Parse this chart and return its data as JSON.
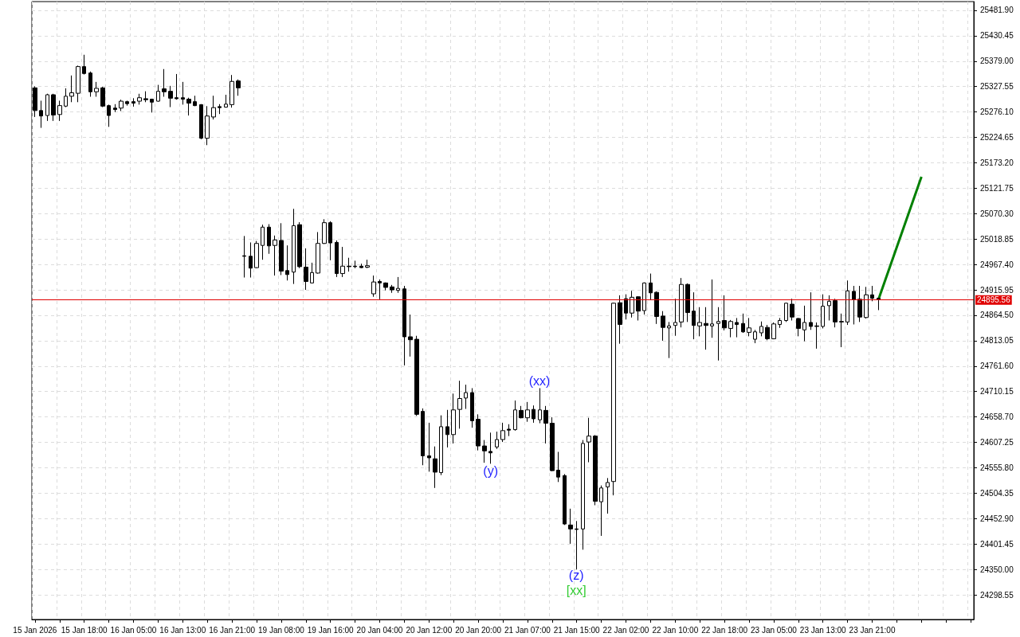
{
  "chart_data": {
    "type": "candlestick",
    "categories": [
      "15 Jan 2026",
      null,
      null,
      null,
      null,
      null,
      null,
      null,
      "15 Jan 18:00",
      null,
      null,
      null,
      null,
      null,
      null,
      null,
      "16 Jan 05:00",
      null,
      null,
      null,
      null,
      null,
      null,
      null,
      "16 Jan 13:00",
      null,
      null,
      null,
      null,
      null,
      null,
      null,
      "16 Jan 21:00",
      null,
      null,
      null,
      null,
      null,
      null,
      null,
      "19 Jan 08:00",
      null,
      null,
      null,
      null,
      null,
      null,
      null,
      "19 Jan 16:00",
      null,
      null,
      null,
      null,
      null,
      null,
      null,
      "20 Jan 04:00",
      null,
      null,
      null,
      null,
      null,
      null,
      null,
      "20 Jan 12:00",
      null,
      null,
      null,
      null,
      null,
      null,
      null,
      "20 Jan 20:00",
      null,
      null,
      null,
      null,
      null,
      null,
      null,
      "21 Jan 07:00",
      null,
      null,
      null,
      null,
      null,
      null,
      null,
      "21 Jan 15:00",
      null,
      null,
      null,
      null,
      null,
      null,
      null,
      "22 Jan 02:00",
      null,
      null,
      null,
      null,
      null,
      null,
      null,
      "22 Jan 10:00",
      null,
      null,
      null,
      null,
      null,
      null,
      null,
      "22 Jan 18:00",
      null,
      null,
      null,
      null,
      null,
      null,
      null,
      "23 Jan 05:00",
      null,
      null,
      null,
      null,
      null,
      null,
      null,
      "23 Jan 13:00",
      null,
      null,
      null,
      null,
      null,
      null,
      null,
      "23 Jan 21:00",
      null,
      null,
      null,
      null,
      null,
      null,
      null,
      null,
      null,
      null,
      null,
      null,
      null,
      null,
      null,
      null
    ],
    "ohlc": [
      [
        25325,
        25328,
        25266,
        25279
      ],
      [
        25279,
        25299,
        25244,
        25268
      ],
      [
        25269,
        25313,
        25258,
        25311
      ],
      [
        25311,
        25313,
        25258,
        25270
      ],
      [
        25271,
        25299,
        25258,
        25289
      ],
      [
        25288,
        25324,
        25286,
        25308
      ],
      [
        25308,
        25350,
        25296,
        25315
      ],
      [
        25314,
        25370,
        25296,
        25368
      ],
      [
        25368,
        25392,
        25352,
        25354
      ],
      [
        25355,
        25358,
        25307,
        25317
      ],
      [
        25317,
        25337,
        25307,
        25324
      ],
      [
        25325,
        25327,
        25286,
        25288
      ],
      [
        25289,
        25291,
        25246,
        25269
      ],
      [
        25284,
        25292,
        25276,
        25281
      ],
      [
        25284,
        25301,
        25278,
        25298
      ],
      [
        25297,
        25299,
        25289,
        25293
      ],
      [
        25297,
        25304,
        25287,
        25294
      ],
      [
        25298,
        25313,
        25291,
        25305
      ],
      [
        25303,
        25318,
        25296,
        25301
      ],
      [
        25302,
        25303,
        25275,
        25296
      ],
      [
        25298,
        25331,
        25297,
        25318
      ],
      [
        25323,
        25363,
        25307,
        25317
      ],
      [
        25318,
        25329,
        25286,
        25304
      ],
      [
        25305,
        25353,
        25301,
        25303
      ],
      [
        25305,
        25337,
        25291,
        25302
      ],
      [
        25302,
        25305,
        25269,
        25294
      ],
      [
        25297,
        25309,
        25288,
        25289
      ],
      [
        25291,
        25292,
        25221,
        25223
      ],
      [
        25223,
        25288,
        25209,
        25268
      ],
      [
        25266,
        25309,
        25261,
        25285
      ],
      [
        25287,
        25292,
        25272,
        25285
      ],
      [
        25286,
        25311,
        25285,
        25292
      ],
      [
        25291,
        25351,
        25285,
        25338
      ],
      [
        25339,
        25342,
        25309,
        25325
      ],
      [
        24985,
        25025,
        24941,
        24984
      ],
      [
        24984,
        25012,
        24941,
        24960
      ],
      [
        24961,
        25015,
        24960,
        25010
      ],
      [
        25006,
        25048,
        24977,
        25043
      ],
      [
        25043,
        25049,
        24989,
        25005
      ],
      [
        25006,
        25026,
        24945,
        25017
      ],
      [
        25016,
        25051,
        24946,
        24954
      ],
      [
        24955,
        25006,
        24935,
        24947
      ],
      [
        24952,
        25080,
        24928,
        25046
      ],
      [
        25048,
        25053,
        24960,
        24963
      ],
      [
        24962,
        25000,
        24916,
        24933
      ],
      [
        24930,
        24971,
        24929,
        24951
      ],
      [
        24950,
        25033,
        24949,
        25010
      ],
      [
        25010,
        25059,
        25009,
        25052
      ],
      [
        25052,
        25055,
        24976,
        25011
      ],
      [
        25012,
        25016,
        24942,
        24949
      ],
      [
        24949,
        25003,
        24942,
        24964
      ],
      [
        24964,
        24981,
        24953,
        24963
      ],
      [
        24964,
        24975,
        24960,
        24963
      ],
      [
        24964,
        24969,
        24960,
        24961
      ],
      [
        24962,
        24977,
        24960,
        24965
      ],
      [
        24908,
        24945,
        24902,
        24932
      ],
      [
        24933,
        24937,
        24897,
        24930
      ],
      [
        24930,
        24931,
        24915,
        24921
      ],
      [
        24922,
        24926,
        24910,
        24916
      ],
      [
        24915,
        24942,
        24910,
        24919
      ],
      [
        24918,
        24924,
        24763,
        24821
      ],
      [
        24821,
        24866,
        24781,
        24815
      ],
      [
        24816,
        24823,
        24661,
        24664
      ],
      [
        24670,
        24676,
        24561,
        24580
      ],
      [
        24580,
        24647,
        24548,
        24576
      ],
      [
        24574,
        24599,
        24515,
        24547
      ],
      [
        24546,
        24662,
        24541,
        24639
      ],
      [
        24639,
        24673,
        24597,
        24623
      ],
      [
        24623,
        24706,
        24605,
        24673
      ],
      [
        24674,
        24732,
        24635,
        24696
      ],
      [
        24697,
        24724,
        24675,
        24708
      ],
      [
        24708,
        24717,
        24637,
        24651
      ],
      [
        24654,
        24664,
        24591,
        24600
      ],
      [
        24600,
        24612,
        24566,
        24590
      ],
      [
        24589,
        24627,
        24564,
        24586
      ],
      [
        24598,
        24629,
        24594,
        24613
      ],
      [
        24613,
        24647,
        24608,
        24631
      ],
      [
        24634,
        24644,
        24620,
        24632
      ],
      [
        24633,
        24692,
        24631,
        24673
      ],
      [
        24672,
        24681,
        24656,
        24657
      ],
      [
        24657,
        24689,
        24649,
        24673
      ],
      [
        24674,
        24682,
        24647,
        24655
      ],
      [
        24653,
        24717,
        24646,
        24673
      ],
      [
        24672,
        24681,
        24605,
        24646
      ],
      [
        24646,
        24658,
        24549,
        24550
      ],
      [
        24551,
        24588,
        24527,
        24537
      ],
      [
        24540,
        24543,
        24440,
        24442
      ],
      [
        24440,
        24473,
        24402,
        24432
      ],
      [
        24432,
        24448,
        24350,
        24431
      ],
      [
        24432,
        24612,
        24390,
        24605
      ],
      [
        24608,
        24657,
        24567,
        24620
      ],
      [
        24620,
        24622,
        24480,
        24488
      ],
      [
        24487,
        24520,
        24418,
        24515
      ],
      [
        24517,
        24535,
        24463,
        24526
      ],
      [
        24528,
        24890,
        24500,
        24889
      ],
      [
        24890,
        24905,
        24807,
        24846
      ],
      [
        24898,
        24907,
        24856,
        24869
      ],
      [
        24869,
        24914,
        24860,
        24901
      ],
      [
        24902,
        24903,
        24854,
        24873
      ],
      [
        24874,
        24931,
        24866,
        24930
      ],
      [
        24930,
        24949,
        24895,
        24910
      ],
      [
        24911,
        24913,
        24847,
        24862
      ],
      [
        24863,
        24873,
        24813,
        24840
      ],
      [
        24839,
        24851,
        24778,
        24843
      ],
      [
        24844,
        24898,
        24823,
        24850
      ],
      [
        24851,
        24940,
        24840,
        24927
      ],
      [
        24927,
        24929,
        24851,
        24870
      ],
      [
        24873,
        24911,
        24816,
        24844
      ],
      [
        24843,
        24881,
        24822,
        24850
      ],
      [
        24848,
        24881,
        24795,
        24844
      ],
      [
        24843,
        24937,
        24819,
        24847
      ],
      [
        24848,
        24881,
        24773,
        24852
      ],
      [
        24854,
        24905,
        24834,
        24839
      ],
      [
        24838,
        24855,
        24820,
        24852
      ],
      [
        24850,
        24859,
        24820,
        24846
      ],
      [
        24848,
        24868,
        24829,
        24831
      ],
      [
        24830,
        24859,
        24822,
        24839
      ],
      [
        24816,
        24835,
        24808,
        24831
      ],
      [
        24829,
        24852,
        24822,
        24842
      ],
      [
        24840,
        24845,
        24814,
        24817
      ],
      [
        24817,
        24850,
        24816,
        24847
      ],
      [
        24846,
        24859,
        24839,
        24854
      ],
      [
        24854,
        24890,
        24851,
        24889
      ],
      [
        24887,
        24898,
        24854,
        24861
      ],
      [
        24858,
        24859,
        24822,
        24838
      ],
      [
        24835,
        24884,
        24812,
        24850
      ],
      [
        24850,
        24911,
        24835,
        24842
      ],
      [
        24843,
        24850,
        24797,
        24842
      ],
      [
        24842,
        24907,
        24838,
        24883
      ],
      [
        24884,
        24905,
        24854,
        24893
      ],
      [
        24894,
        24898,
        24840,
        24851
      ],
      [
        24852,
        24868,
        24800,
        24851
      ],
      [
        24851,
        24935,
        24845,
        24914
      ],
      [
        24913,
        24924,
        24846,
        24896
      ],
      [
        24897,
        24924,
        24851,
        24861
      ],
      [
        24860,
        24922,
        24858,
        24906
      ],
      [
        24906,
        24924,
        24893,
        24899
      ],
      [
        24899,
        24900,
        24875,
        24896
      ],
      null,
      null,
      null,
      null,
      null,
      null,
      null,
      null,
      null,
      null,
      null,
      null,
      null,
      null,
      null
    ],
    "series": [
      {
        "type": "line",
        "color": "#008000",
        "values": [
          null,
          null,
          null,
          null,
          null,
          null,
          null,
          null,
          null,
          null,
          null,
          null,
          null,
          null,
          null,
          null,
          null,
          null,
          null,
          null,
          null,
          null,
          null,
          null,
          null,
          null,
          null,
          null,
          null,
          null,
          null,
          null,
          null,
          null,
          null,
          null,
          null,
          null,
          null,
          null,
          null,
          null,
          null,
          null,
          null,
          null,
          null,
          null,
          null,
          null,
          null,
          null,
          null,
          null,
          null,
          null,
          null,
          null,
          null,
          null,
          null,
          null,
          null,
          null,
          null,
          null,
          null,
          null,
          null,
          null,
          null,
          null,
          null,
          null,
          null,
          null,
          null,
          null,
          null,
          null,
          null,
          null,
          null,
          null,
          null,
          null,
          null,
          null,
          null,
          null,
          null,
          null,
          null,
          null,
          null,
          null,
          null,
          null,
          null,
          null,
          null,
          null,
          null,
          null,
          null,
          null,
          null,
          null,
          null,
          null,
          null,
          null,
          null,
          null,
          null,
          null,
          null,
          null,
          null,
          null,
          null,
          null,
          null,
          null,
          null,
          null,
          null,
          null,
          null,
          null,
          null,
          null,
          null,
          null,
          null,
          null,
          null,
          24896,
          null,
          null,
          null,
          null,
          null,
          null,
          25145,
          null,
          null,
          null,
          null,
          null,
          null,
          null,
          null
        ]
      }
    ],
    "marker": "none",
    "ylim": [
      24248.7,
      25499.6
    ],
    "yticks": [
      {
        "value": 24298.55,
        "label": "24298.55"
      },
      {
        "value": 24350,
        "label": "24350.00"
      },
      {
        "value": 24401.45,
        "label": "24401.45"
      },
      {
        "value": 24452.9,
        "label": "24452.90"
      },
      {
        "value": 24504.35,
        "label": "24504.35"
      },
      {
        "value": 24555.8,
        "label": "24555.80"
      },
      {
        "value": 24607.25,
        "label": "24607.25"
      },
      {
        "value": 24658.7,
        "label": "24658.70"
      },
      {
        "value": 24710.15,
        "label": "24710.15"
      },
      {
        "value": 24761.6,
        "label": "24761.60"
      },
      {
        "value": 24813.05,
        "label": "24813.05"
      },
      {
        "value": 24864.5,
        "label": "24864.50"
      },
      {
        "value": 24915.95,
        "label": "24915.95"
      },
      {
        "value": 24967.4,
        "label": "24967.40"
      },
      {
        "value": 25018.85,
        "label": "25018.85"
      },
      {
        "value": 25070.3,
        "label": "25070.30"
      },
      {
        "value": 25121.75,
        "label": "25121.75"
      },
      {
        "value": 25173.2,
        "label": "25173.20"
      },
      {
        "value": 25224.65,
        "label": "25224.65"
      },
      {
        "value": 25276.1,
        "label": "25276.10"
      },
      {
        "value": 25327.55,
        "label": "25327.55"
      },
      {
        "value": 25379,
        "label": "25379.00"
      },
      {
        "value": 25430.45,
        "label": "25430.45"
      },
      {
        "value": 25481.9,
        "label": "25481.90"
      }
    ],
    "ref_lines": [
      {
        "axis": "y",
        "value": 24895.56,
        "label": "24895.56",
        "color": "#e00000"
      }
    ],
    "annotations": [
      "(xx)",
      "(y)",
      "(z)",
      "[xx]"
    ],
    "grid": true
  }
}
